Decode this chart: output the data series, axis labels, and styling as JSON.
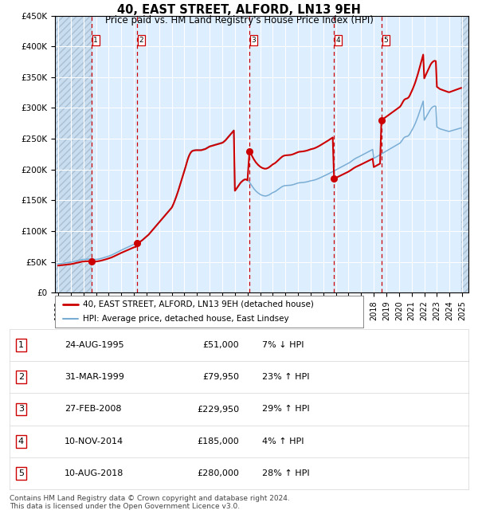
{
  "title": "40, EAST STREET, ALFORD, LN13 9EH",
  "subtitle": "Price paid vs. HM Land Registry's House Price Index (HPI)",
  "footer": "Contains HM Land Registry data © Crown copyright and database right 2024.\nThis data is licensed under the Open Government Licence v3.0.",
  "legend_line1": "40, EAST STREET, ALFORD, LN13 9EH (detached house)",
  "legend_line2": "HPI: Average price, detached house, East Lindsey",
  "sale_color": "#cc0000",
  "hpi_color": "#7aadd4",
  "background_plot": "#ddeeff",
  "background_hatch_fc": "#c8ddf0",
  "grid_color": "#ffffff",
  "vline_color": "#cc0000",
  "ylim": [
    0,
    450000
  ],
  "yticks": [
    0,
    50000,
    100000,
    150000,
    200000,
    250000,
    300000,
    350000,
    400000,
    450000
  ],
  "xlim_start": 1992.75,
  "xlim_end": 2025.5,
  "xticks": [
    1993,
    1994,
    1995,
    1996,
    1997,
    1998,
    1999,
    2000,
    2001,
    2002,
    2003,
    2004,
    2005,
    2006,
    2007,
    2008,
    2009,
    2010,
    2011,
    2012,
    2013,
    2014,
    2015,
    2016,
    2017,
    2018,
    2019,
    2020,
    2021,
    2022,
    2023,
    2024,
    2025
  ],
  "sales": [
    {
      "num": 1,
      "date": "1995-08-24",
      "price": 51000,
      "pct": "7%",
      "dir": "↓"
    },
    {
      "num": 2,
      "date": "1999-03-31",
      "price": 79950,
      "pct": "23%",
      "dir": "↑"
    },
    {
      "num": 3,
      "date": "2008-02-27",
      "price": 229950,
      "pct": "29%",
      "dir": "↑"
    },
    {
      "num": 4,
      "date": "2014-11-10",
      "price": 185000,
      "pct": "4%",
      "dir": "↑"
    },
    {
      "num": 5,
      "date": "2018-08-10",
      "price": 280000,
      "pct": "28%",
      "dir": "↑"
    }
  ],
  "hpi_dates": [
    1993.0,
    1993.083,
    1993.167,
    1993.25,
    1993.333,
    1993.417,
    1993.5,
    1993.583,
    1993.667,
    1993.75,
    1993.833,
    1993.917,
    1994.0,
    1994.083,
    1994.167,
    1994.25,
    1994.333,
    1994.417,
    1994.5,
    1994.583,
    1994.667,
    1994.75,
    1994.833,
    1994.917,
    1995.0,
    1995.083,
    1995.167,
    1995.25,
    1995.333,
    1995.417,
    1995.5,
    1995.583,
    1995.667,
    1995.75,
    1995.833,
    1995.917,
    1996.0,
    1996.083,
    1996.167,
    1996.25,
    1996.333,
    1996.417,
    1996.5,
    1996.583,
    1996.667,
    1996.75,
    1996.833,
    1996.917,
    1997.0,
    1997.083,
    1997.167,
    1997.25,
    1997.333,
    1997.417,
    1997.5,
    1997.583,
    1997.667,
    1997.75,
    1997.833,
    1997.917,
    1998.0,
    1998.083,
    1998.167,
    1998.25,
    1998.333,
    1998.417,
    1998.5,
    1998.583,
    1998.667,
    1998.75,
    1998.833,
    1998.917,
    1999.0,
    1999.083,
    1999.167,
    1999.25,
    1999.333,
    1999.417,
    1999.5,
    1999.583,
    1999.667,
    1999.75,
    1999.833,
    1999.917,
    2000.0,
    2000.083,
    2000.167,
    2000.25,
    2000.333,
    2000.417,
    2000.5,
    2000.583,
    2000.667,
    2000.75,
    2000.833,
    2000.917,
    2001.0,
    2001.083,
    2001.167,
    2001.25,
    2001.333,
    2001.417,
    2001.5,
    2001.583,
    2001.667,
    2001.75,
    2001.833,
    2001.917,
    2002.0,
    2002.083,
    2002.167,
    2002.25,
    2002.333,
    2002.417,
    2002.5,
    2002.583,
    2002.667,
    2002.75,
    2002.833,
    2002.917,
    2003.0,
    2003.083,
    2003.167,
    2003.25,
    2003.333,
    2003.417,
    2003.5,
    2003.583,
    2003.667,
    2003.75,
    2003.833,
    2003.917,
    2004.0,
    2004.083,
    2004.167,
    2004.25,
    2004.333,
    2004.417,
    2004.5,
    2004.583,
    2004.667,
    2004.75,
    2004.833,
    2004.917,
    2005.0,
    2005.083,
    2005.167,
    2005.25,
    2005.333,
    2005.417,
    2005.5,
    2005.583,
    2005.667,
    2005.75,
    2005.833,
    2005.917,
    2006.0,
    2006.083,
    2006.167,
    2006.25,
    2006.333,
    2006.417,
    2006.5,
    2006.583,
    2006.667,
    2006.75,
    2006.833,
    2006.917,
    2007.0,
    2007.083,
    2007.167,
    2007.25,
    2007.333,
    2007.417,
    2007.5,
    2007.583,
    2007.667,
    2007.75,
    2007.833,
    2007.917,
    2008.0,
    2008.083,
    2008.167,
    2008.25,
    2008.333,
    2008.417,
    2008.5,
    2008.583,
    2008.667,
    2008.75,
    2008.833,
    2008.917,
    2009.0,
    2009.083,
    2009.167,
    2009.25,
    2009.333,
    2009.417,
    2009.5,
    2009.583,
    2009.667,
    2009.75,
    2009.833,
    2009.917,
    2010.0,
    2010.083,
    2010.167,
    2010.25,
    2010.333,
    2010.417,
    2010.5,
    2010.583,
    2010.667,
    2010.75,
    2010.833,
    2010.917,
    2011.0,
    2011.083,
    2011.167,
    2011.25,
    2011.333,
    2011.417,
    2011.5,
    2011.583,
    2011.667,
    2011.75,
    2011.833,
    2011.917,
    2012.0,
    2012.083,
    2012.167,
    2012.25,
    2012.333,
    2012.417,
    2012.5,
    2012.583,
    2012.667,
    2012.75,
    2012.833,
    2012.917,
    2013.0,
    2013.083,
    2013.167,
    2013.25,
    2013.333,
    2013.417,
    2013.5,
    2013.583,
    2013.667,
    2013.75,
    2013.833,
    2013.917,
    2014.0,
    2014.083,
    2014.167,
    2014.25,
    2014.333,
    2014.417,
    2014.5,
    2014.583,
    2014.667,
    2014.75,
    2014.833,
    2014.917,
    2015.0,
    2015.083,
    2015.167,
    2015.25,
    2015.333,
    2015.417,
    2015.5,
    2015.583,
    2015.667,
    2015.75,
    2015.833,
    2015.917,
    2016.0,
    2016.083,
    2016.167,
    2016.25,
    2016.333,
    2016.417,
    2016.5,
    2016.583,
    2016.667,
    2016.75,
    2016.833,
    2016.917,
    2017.0,
    2017.083,
    2017.167,
    2017.25,
    2017.333,
    2017.417,
    2017.5,
    2017.583,
    2017.667,
    2017.75,
    2017.833,
    2017.917,
    2018.0,
    2018.083,
    2018.167,
    2018.25,
    2018.333,
    2018.417,
    2018.5,
    2018.583,
    2018.667,
    2018.75,
    2018.833,
    2018.917,
    2019.0,
    2019.083,
    2019.167,
    2019.25,
    2019.333,
    2019.417,
    2019.5,
    2019.583,
    2019.667,
    2019.75,
    2019.833,
    2019.917,
    2020.0,
    2020.083,
    2020.167,
    2020.25,
    2020.333,
    2020.417,
    2020.5,
    2020.583,
    2020.667,
    2020.75,
    2020.833,
    2020.917,
    2021.0,
    2021.083,
    2021.167,
    2021.25,
    2021.333,
    2021.417,
    2021.5,
    2021.583,
    2021.667,
    2021.75,
    2021.833,
    2021.917,
    2022.0,
    2022.083,
    2022.167,
    2022.25,
    2022.333,
    2022.417,
    2022.5,
    2022.583,
    2022.667,
    2022.75,
    2022.833,
    2022.917,
    2023.0,
    2023.083,
    2023.167,
    2023.25,
    2023.333,
    2023.417,
    2023.5,
    2023.583,
    2023.667,
    2023.75,
    2023.833,
    2023.917,
    2024.0,
    2024.083,
    2024.167,
    2024.25,
    2024.333,
    2024.417,
    2024.5,
    2024.583,
    2024.667,
    2024.75,
    2024.833,
    2024.917
  ],
  "hpi_vals": [
    47000,
    47200,
    47400,
    47600,
    47800,
    48000,
    48200,
    48400,
    48600,
    48800,
    49000,
    49200,
    49400,
    49800,
    50200,
    50600,
    51000,
    51400,
    51800,
    52200,
    52600,
    53000,
    53400,
    53800,
    54000,
    54100,
    54200,
    54300,
    54400,
    54500,
    54600,
    54500,
    54400,
    54300,
    54200,
    54100,
    54000,
    54200,
    54500,
    54800,
    55200,
    55600,
    56100,
    56600,
    57100,
    57600,
    58100,
    58700,
    59300,
    59900,
    60500,
    61200,
    62000,
    62800,
    63700,
    64600,
    65500,
    66400,
    67300,
    68200,
    69000,
    69800,
    70600,
    71400,
    72200,
    73000,
    73800,
    74600,
    75400,
    76200,
    77000,
    77800,
    78500,
    79000,
    79500,
    80200,
    81000,
    82000,
    83000,
    84200,
    85500,
    87000,
    88500,
    90000,
    91500,
    93000,
    94500,
    96500,
    98500,
    100500,
    102500,
    104500,
    106500,
    108500,
    110500,
    112500,
    114500,
    116500,
    118500,
    120500,
    122500,
    124500,
    126500,
    128500,
    130500,
    132500,
    134500,
    136500,
    138500,
    142000,
    146000,
    150500,
    155000,
    160000,
    165000,
    170500,
    176000,
    181500,
    187000,
    192500,
    198000,
    204000,
    210000,
    216000,
    221000,
    225000,
    228000,
    230000,
    231000,
    231500,
    231800,
    232000,
    232000,
    232000,
    232000,
    232000,
    232000,
    232500,
    233000,
    233500,
    234000,
    235000,
    236000,
    237000,
    238000,
    238500,
    239000,
    239500,
    240000,
    240500,
    241000,
    241500,
    242000,
    242500,
    243000,
    243500,
    244000,
    245000,
    246500,
    248000,
    250000,
    252000,
    254000,
    256000,
    258000,
    260000,
    262000,
    264000,
    166000,
    168000,
    170500,
    173000,
    175500,
    178000,
    180000,
    181500,
    183000,
    184000,
    184500,
    184000,
    183000,
    181500,
    179000,
    176500,
    174000,
    171500,
    169000,
    167000,
    165000,
    163500,
    162000,
    160800,
    159600,
    158800,
    158000,
    157500,
    157100,
    157000,
    157200,
    157700,
    158400,
    159300,
    160400,
    161500,
    162500,
    163200,
    164000,
    165000,
    166200,
    167500,
    168800,
    170000,
    171200,
    172300,
    173100,
    173600,
    173900,
    174000,
    174100,
    174200,
    174300,
    174500,
    174800,
    175200,
    175700,
    176300,
    176900,
    177500,
    178000,
    178400,
    178600,
    178700,
    178800,
    179000,
    179200,
    179500,
    179800,
    180200,
    180700,
    181200,
    181600,
    181900,
    182200,
    182600,
    183100,
    183700,
    184300,
    185000,
    185700,
    186500,
    187300,
    188200,
    189000,
    189800,
    190600,
    191400,
    192200,
    193000,
    193900,
    194800,
    195700,
    196600,
    197500,
    198400,
    199300,
    200200,
    201100,
    202000,
    202900,
    203800,
    204700,
    205600,
    206500,
    207400,
    208300,
    209200,
    210100,
    211200,
    212400,
    213700,
    215000,
    216200,
    217300,
    218300,
    219200,
    220000,
    220800,
    221700,
    222600,
    223500,
    224400,
    225300,
    226200,
    227100,
    228000,
    228900,
    229800,
    230700,
    231600,
    232500,
    218000,
    219000,
    220000,
    221000,
    222000,
    223000,
    224000,
    225000,
    226000,
    227000,
    228000,
    229000,
    230000,
    231000,
    232000,
    233000,
    234000,
    235000,
    236000,
    237000,
    238000,
    239000,
    240000,
    241000,
    242000,
    243000,
    245000,
    247500,
    250000,
    252000,
    253000,
    253500,
    254000,
    255000,
    257000,
    260000,
    263000,
    266000,
    269500,
    273000,
    277000,
    281500,
    286000,
    291000,
    296000,
    301000,
    306000,
    311000,
    280000,
    283000,
    286000,
    289000,
    292000,
    295000,
    298000,
    300000,
    301500,
    302500,
    303000,
    302500,
    269000,
    268000,
    267000,
    266000,
    265500,
    265000,
    264500,
    264000,
    263500,
    263000,
    262500,
    262000,
    262000,
    262500,
    263000,
    263500,
    264000,
    264500,
    265000,
    265500,
    266000,
    266500,
    267000,
    267500
  ]
}
